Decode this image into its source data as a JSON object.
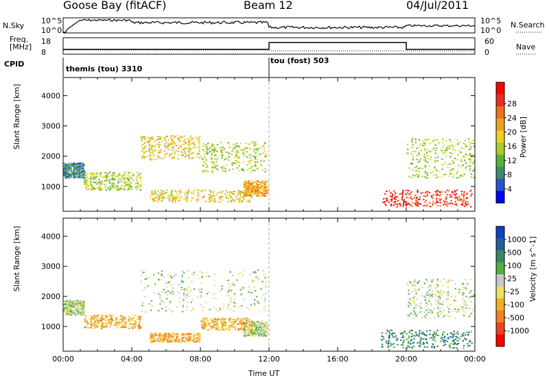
{
  "header": {
    "station": "Goose Bay (fitACF)",
    "beam": "Beam 12",
    "date": "04/Jul/2011"
  },
  "top_panels": {
    "nsky_label": "N.Sky",
    "nsky_ticks": [
      "10^5",
      "10^0"
    ],
    "nsearch_label": "N.Search",
    "nsearch_ticks": [
      "10^5",
      "10^0"
    ],
    "freq_label_line1": "Freq.",
    "freq_label_line2": "[MHz]",
    "freq_ticks": [
      "18",
      "8"
    ],
    "nave_label": "Nave",
    "nave_ticks": [
      "60",
      "0"
    ],
    "cpid_label": "CPID",
    "cpid_segments": [
      {
        "name": "themis (tou) 3310",
        "start_hour": 0,
        "end_hour": 12
      },
      {
        "name": "tou (fost) 503",
        "start_hour": 12,
        "end_hour": 24
      }
    ]
  },
  "chart_data": [
    {
      "type": "heatmap",
      "title": "Power",
      "ylabel": "Slant Range [km]",
      "xlim": [
        0,
        24
      ],
      "ylim": [
        180,
        4600
      ],
      "y_ticks": [
        1000,
        2000,
        3000,
        4000
      ],
      "colorbar_label": "Power [dB]",
      "colorbar_ticks": [
        "4",
        "8",
        "12",
        "16",
        "20",
        "24",
        "28"
      ],
      "colorbar_colors": [
        "#0000ff",
        "#2a52d8",
        "#3f8a70",
        "#58b23a",
        "#a8cc28",
        "#f0d020",
        "#f0a020",
        "#f07020",
        "#e83020",
        "#ff0000"
      ],
      "scatter_regions": [
        {
          "x": [
            0.0,
            1.2
          ],
          "y": [
            1300,
            1800
          ],
          "level": 2
        },
        {
          "x": [
            1.2,
            4.5
          ],
          "y": [
            900,
            1500
          ],
          "level": 4
        },
        {
          "x": [
            4.5,
            8.0
          ],
          "y": [
            1900,
            2700
          ],
          "level": 5
        },
        {
          "x": [
            8.0,
            11.8
          ],
          "y": [
            1500,
            2500
          ],
          "level": 4
        },
        {
          "x": [
            10.5,
            11.9
          ],
          "y": [
            700,
            1200
          ],
          "level": 6
        },
        {
          "x": [
            5.0,
            11.0
          ],
          "y": [
            500,
            900
          ],
          "level": 5
        },
        {
          "x": [
            18.5,
            23.8
          ],
          "y": [
            350,
            900
          ],
          "level": 8
        },
        {
          "x": [
            20.0,
            24.0
          ],
          "y": [
            1300,
            2600
          ],
          "level": 4
        }
      ]
    },
    {
      "type": "heatmap",
      "title": "Velocity",
      "ylabel": "Slant Range [km]",
      "xlabel": "Time UT",
      "xlim": [
        0,
        24
      ],
      "ylim": [
        180,
        4600
      ],
      "y_ticks": [
        1000,
        2000,
        3000,
        4000
      ],
      "x_ticks": [
        "00:00",
        "04:00",
        "08:00",
        "12:00",
        "16:00",
        "20:00",
        "00:00"
      ],
      "colorbar_label": "Velocity [m s^-1]",
      "colorbar_ticks": [
        "1000",
        "500",
        "100",
        "25",
        "-25",
        "-100",
        "-500",
        "-1000"
      ],
      "colorbar_colors": [
        "#1040c0",
        "#2060a0",
        "#3a8860",
        "#50b040",
        "#c8c8c8",
        "#f0e060",
        "#f0b020",
        "#f08020",
        "#f04020",
        "#ff0000"
      ],
      "scatter_regions": [
        {
          "x": [
            0.0,
            1.2
          ],
          "y": [
            1400,
            1900
          ],
          "level": 4
        },
        {
          "x": [
            1.2,
            4.5
          ],
          "y": [
            950,
            1400
          ],
          "level": 6
        },
        {
          "x": [
            4.5,
            11.8
          ],
          "y": [
            1500,
            2900
          ],
          "level": 4
        },
        {
          "x": [
            10.5,
            11.9
          ],
          "y": [
            700,
            1200
          ],
          "level": 4
        },
        {
          "x": [
            5.0,
            8.0
          ],
          "y": [
            500,
            800
          ],
          "level": 6
        },
        {
          "x": [
            8.0,
            11.0
          ],
          "y": [
            900,
            1300
          ],
          "level": 6
        },
        {
          "x": [
            18.5,
            23.8
          ],
          "y": [
            300,
            900
          ],
          "level": 2
        },
        {
          "x": [
            20.0,
            24.0
          ],
          "y": [
            1300,
            2600
          ],
          "level": 4
        }
      ]
    }
  ],
  "colors": {
    "ground_scatter": "#c0c0c0"
  }
}
